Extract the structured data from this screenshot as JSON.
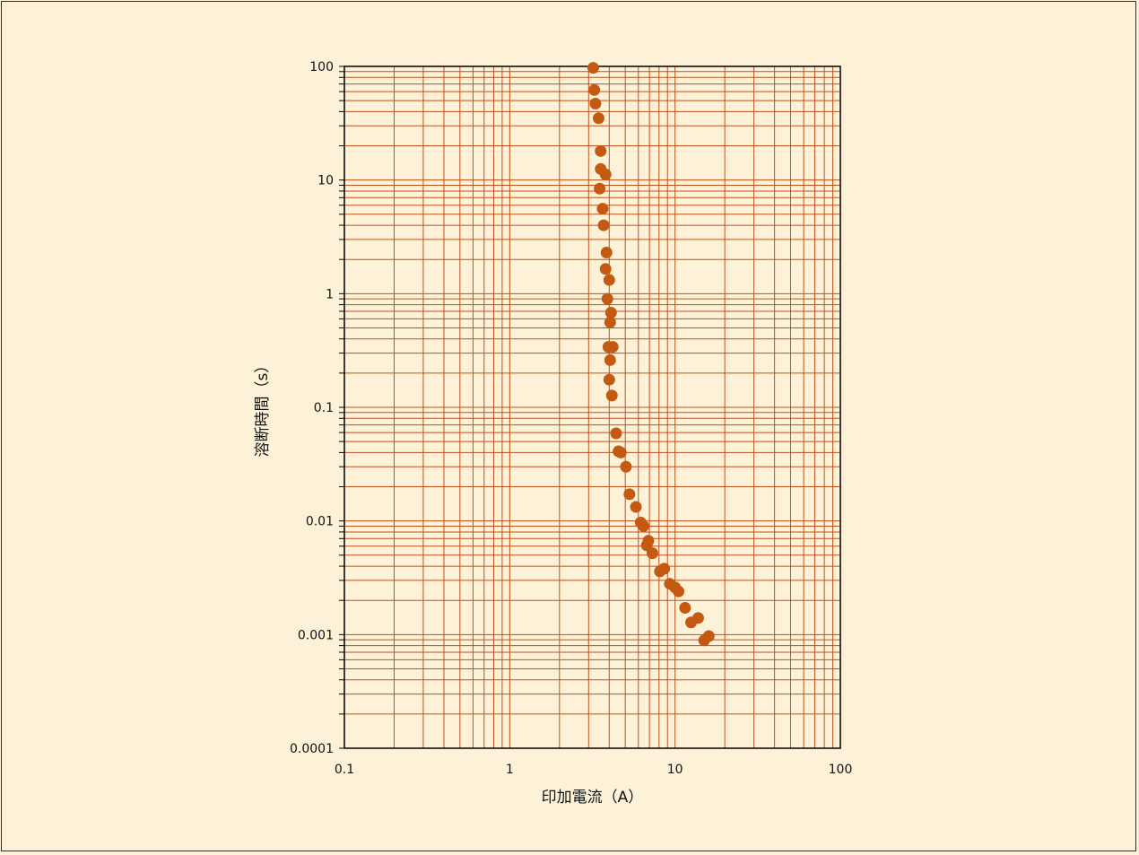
{
  "chart_data": {
    "type": "scatter",
    "title": "",
    "xlabel": "印加電流（A）",
    "ylabel": "溶断時間（s）",
    "xscale": "log",
    "yscale": "log",
    "xlim": [
      0.1,
      100
    ],
    "ylim": [
      0.0001,
      100
    ],
    "grid": true,
    "x_ticks": [
      {
        "value": 0.1,
        "label": "0.1"
      },
      {
        "value": 1,
        "label": "1"
      },
      {
        "value": 10,
        "label": "10"
      },
      {
        "value": 100,
        "label": "100"
      }
    ],
    "y_ticks": [
      {
        "value": 0.0001,
        "label": "0.0001"
      },
      {
        "value": 0.001,
        "label": "0.001"
      },
      {
        "value": 0.01,
        "label": "0.01"
      },
      {
        "value": 0.1,
        "label": "0.1"
      },
      {
        "value": 1,
        "label": "1"
      },
      {
        "value": 10,
        "label": "10"
      },
      {
        "value": 100,
        "label": "100"
      }
    ],
    "colors": {
      "grid": "#c0501a",
      "marker": "#c45a12",
      "axis": "#000000"
    },
    "series": [
      {
        "points": [
          [
            3.2,
            97
          ],
          [
            3.25,
            62
          ],
          [
            3.3,
            47
          ],
          [
            3.45,
            35
          ],
          [
            3.55,
            18
          ],
          [
            3.55,
            12.5
          ],
          [
            3.8,
            11.2
          ],
          [
            3.5,
            8.4
          ],
          [
            3.65,
            5.6
          ],
          [
            3.7,
            4.0
          ],
          [
            3.85,
            2.3
          ],
          [
            3.8,
            1.65
          ],
          [
            4.0,
            1.32
          ],
          [
            3.9,
            0.9
          ],
          [
            4.1,
            0.68
          ],
          [
            4.05,
            0.56
          ],
          [
            3.95,
            0.34
          ],
          [
            4.2,
            0.34
          ],
          [
            4.05,
            0.26
          ],
          [
            4.0,
            0.175
          ],
          [
            4.15,
            0.127
          ],
          [
            4.4,
            0.059
          ],
          [
            4.55,
            0.041
          ],
          [
            4.7,
            0.04
          ],
          [
            5.05,
            0.03
          ],
          [
            5.3,
            0.0172
          ],
          [
            5.8,
            0.0133
          ],
          [
            6.2,
            0.0097
          ],
          [
            6.45,
            0.009
          ],
          [
            6.9,
            0.0067
          ],
          [
            6.75,
            0.0061
          ],
          [
            7.3,
            0.0052
          ],
          [
            8.1,
            0.0036
          ],
          [
            8.6,
            0.0038
          ],
          [
            9.3,
            0.0028
          ],
          [
            10.0,
            0.0026
          ],
          [
            10.5,
            0.0024
          ],
          [
            11.5,
            0.00172
          ],
          [
            12.5,
            0.00128
          ],
          [
            13.8,
            0.0014
          ],
          [
            15.0,
            0.00089
          ],
          [
            16.0,
            0.00097
          ]
        ]
      }
    ]
  }
}
